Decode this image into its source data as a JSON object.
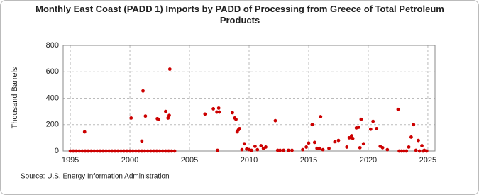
{
  "chart_data": {
    "type": "scatter",
    "title": "Monthly East Coast (PADD 1) Imports by PADD of Processing from Greece of Total Petroleum Products",
    "ylabel": "Thousand Barrels",
    "source": "Source: U.S. Energy Information Administration",
    "color": "#cc0000",
    "grid": true,
    "xlim": [
      1994.4,
      2025.6
    ],
    "xticks": [
      1995,
      2000,
      2005,
      2010,
      2015,
      2020,
      2025
    ],
    "ylim": [
      0,
      800
    ],
    "yticks": [
      0,
      200,
      400,
      600,
      800
    ],
    "x": [
      1995,
      1995.25,
      1995.5,
      1995.75,
      1996,
      1996.25,
      1996.5,
      1996.75,
      1997,
      1997.25,
      1997.5,
      1997.75,
      1998,
      1998.25,
      1998.5,
      1998.75,
      1999,
      1999.25,
      1999.5,
      1999.75,
      2000,
      2000.25,
      2000.5,
      2000.75,
      2001,
      2001.25,
      2001.5,
      2001.75,
      2002,
      2002.25,
      2002.5,
      2002.75,
      2003,
      2003.25,
      2003.5,
      2003.75,
      2022.6,
      2022.8,
      2023.0,
      2023.2,
      2024.3,
      2024.6,
      2024.9,
      1996.2,
      2000.1,
      2001.1,
      2001.0,
      2001.3,
      2002.3,
      2002.4,
      2003.0,
      2003.2,
      2003.3,
      2003.35,
      2006.3,
      2007.0,
      2007.3,
      2007.5,
      2007.45,
      2007.35,
      2008.6,
      2008.8,
      2008.9,
      2009.0,
      2009.1,
      2009.2,
      2009.4,
      2009.6,
      2009.8,
      2010.0,
      2010.2,
      2010.5,
      2010.7,
      2011.0,
      2011.2,
      2011.4,
      2012.2,
      2012.4,
      2012.6,
      2012.9,
      2013.3,
      2013.6,
      2014.5,
      2014.8,
      2015.0,
      2015.3,
      2015.5,
      2015.7,
      2015.9,
      2016.0,
      2016.2,
      2016.7,
      2017.2,
      2017.5,
      2018.2,
      2018.4,
      2018.6,
      2018.7,
      2019.0,
      2019.2,
      2019.4,
      2019.6,
      2019.3,
      2020.2,
      2020.4,
      2020.7,
      2021.0,
      2021.2,
      2021.6,
      2022.5,
      2023.4,
      2023.6,
      2023.8,
      2024.0,
      2024.2,
      2024.5,
      2024.7
    ],
    "values": [
      0,
      0,
      0,
      0,
      0,
      0,
      0,
      0,
      0,
      0,
      0,
      0,
      0,
      0,
      0,
      0,
      0,
      0,
      0,
      0,
      0,
      0,
      0,
      0,
      0,
      0,
      0,
      0,
      0,
      0,
      0,
      0,
      0,
      0,
      0,
      0,
      0,
      0,
      0,
      0,
      0,
      0,
      0,
      145,
      250,
      455,
      75,
      265,
      245,
      240,
      300,
      250,
      270,
      620,
      280,
      320,
      295,
      295,
      325,
      5,
      290,
      250,
      240,
      145,
      160,
      170,
      10,
      55,
      15,
      10,
      5,
      35,
      10,
      40,
      20,
      30,
      230,
      5,
      5,
      5,
      5,
      5,
      10,
      30,
      60,
      200,
      65,
      20,
      20,
      260,
      10,
      20,
      70,
      80,
      30,
      100,
      115,
      95,
      175,
      180,
      240,
      55,
      25,
      165,
      225,
      170,
      35,
      25,
      10,
      315,
      30,
      105,
      200,
      5,
      80,
      40,
      5
    ]
  }
}
